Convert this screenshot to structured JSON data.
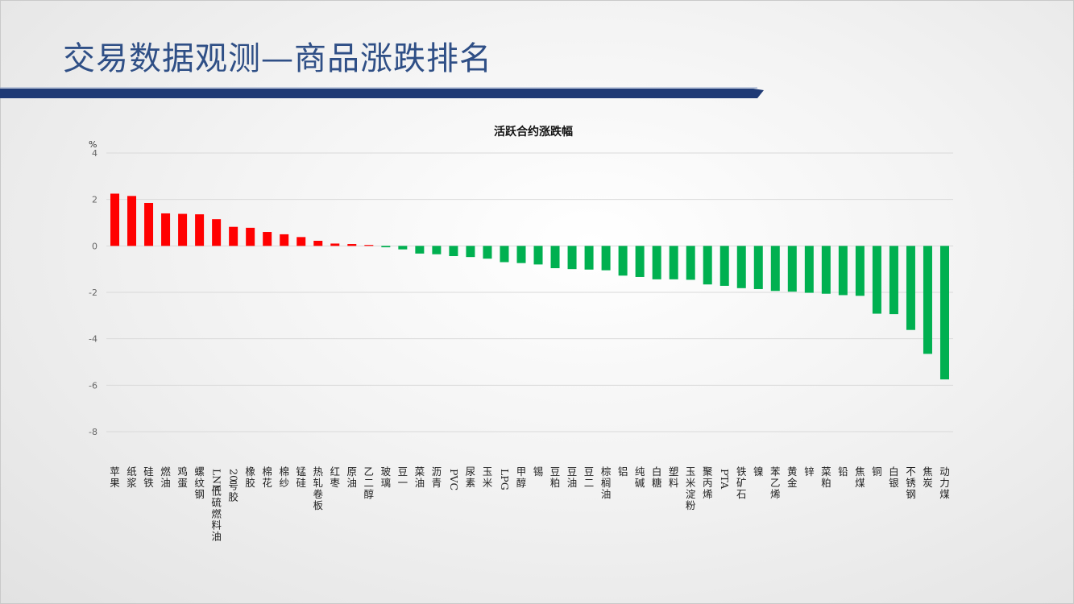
{
  "slide": {
    "title": "交易数据观测—商品涨跌排名"
  },
  "colors": {
    "up": "#ff0000",
    "down": "#00b050",
    "title": "#2f4f86",
    "bar_navy": "#1f3a75",
    "grid": "#d9d9d9"
  },
  "chart_data": {
    "type": "bar",
    "title": "活跃合约涨跌幅",
    "ylabel": "%",
    "xlabel": "",
    "ylim": [
      -8,
      4
    ],
    "yticks": [
      4,
      2,
      0,
      -2,
      -4,
      -6,
      -8
    ],
    "grid": true,
    "legend": "none",
    "categories": [
      "苹果",
      "纸浆",
      "硅铁",
      "燃油",
      "鸡蛋",
      "螺纹钢",
      "LNE低硫燃料油",
      "20号胶",
      "橡胶",
      "棉花",
      "棉纱",
      "锰硅",
      "热轧卷板",
      "红枣",
      "原油",
      "乙二醇",
      "玻璃",
      "豆一",
      "菜油",
      "沥青",
      "PVC",
      "尿素",
      "玉米",
      "LPG",
      "甲醇",
      "锡",
      "豆粕",
      "豆油",
      "豆二",
      "棕榈油",
      "铝",
      "纯碱",
      "白糖",
      "塑料",
      "玉米淀粉",
      "聚丙烯",
      "PTA",
      "铁矿石",
      "镍",
      "苯乙烯",
      "黄金",
      "锌",
      "菜粕",
      "铅",
      "焦煤",
      "铜",
      "白银",
      "不锈钢",
      "焦炭",
      "动力煤"
    ],
    "values": [
      2.25,
      2.15,
      1.85,
      1.4,
      1.38,
      1.36,
      1.15,
      0.82,
      0.78,
      0.6,
      0.5,
      0.38,
      0.22,
      0.1,
      0.08,
      0.04,
      -0.06,
      -0.15,
      -0.33,
      -0.36,
      -0.44,
      -0.48,
      -0.55,
      -0.7,
      -0.74,
      -0.8,
      -0.96,
      -1.0,
      -1.02,
      -1.05,
      -1.28,
      -1.34,
      -1.44,
      -1.44,
      -1.46,
      -1.66,
      -1.72,
      -1.82,
      -1.86,
      -1.94,
      -1.97,
      -2.02,
      -2.06,
      -2.12,
      -2.15,
      -2.92,
      -2.94,
      -3.62,
      -4.65,
      -5.75
    ]
  }
}
